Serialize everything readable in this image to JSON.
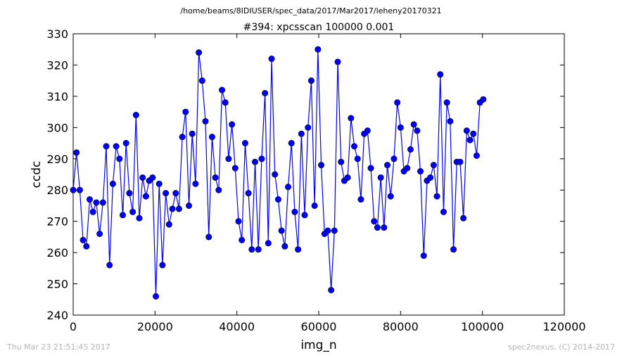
{
  "header": {
    "path": "/home/beams/8IDIUSER/spec_data/2017/Mar2017/leheny20170321",
    "scan_title": "#394: xpcsscan 100000 0.001"
  },
  "footer": {
    "timestamp": "Thu Mar 23 21:51:45 2017",
    "credit": "spec2nexus, (C) 2014-2017"
  },
  "chart_data": {
    "type": "line",
    "title": "#394: xpcsscan 100000 0.001",
    "xlabel": "img_n",
    "ylabel": "ccdc",
    "xlim": [
      0,
      120000
    ],
    "ylim": [
      240,
      330
    ],
    "xticks": [
      0,
      20000,
      40000,
      60000,
      80000,
      100000,
      120000
    ],
    "yticks": [
      240,
      250,
      260,
      270,
      280,
      290,
      300,
      310,
      320,
      330
    ],
    "grid": false,
    "marker": "circle",
    "color": "#0000ff",
    "series": [
      {
        "x": [
          0,
          808,
          1616,
          2424,
          3232,
          4040,
          4848,
          5657,
          6465,
          7273,
          8081,
          8889,
          9697,
          10505,
          11313,
          12121,
          12929,
          13737,
          14545,
          15354,
          16162,
          16970,
          17778,
          18586,
          19394,
          20202,
          21010,
          21818,
          22626,
          23434,
          24242,
          25051,
          25859,
          26667,
          27475,
          28283,
          29091,
          29899,
          30707,
          31515,
          32323,
          33131,
          33939,
          34747,
          35556,
          36364,
          37172,
          37980,
          38788,
          39596,
          40404,
          41212,
          42020,
          42828,
          43636,
          44444,
          45253,
          46061,
          46869,
          47677,
          48485,
          49293,
          50101,
          50909,
          51717,
          52525,
          53333,
          54141,
          54949,
          55758,
          56566,
          57374,
          58182,
          58990,
          59798,
          60606,
          61414,
          62222,
          63030,
          63838,
          64646,
          65455,
          66263,
          67071,
          67879,
          68687,
          69495,
          70303,
          71111,
          71919,
          72727,
          73535,
          74343,
          75152,
          75960,
          76768,
          77576,
          78384,
          79192,
          80000,
          80808,
          81616,
          82424,
          83232,
          84040,
          84848,
          85657,
          86465,
          87273,
          88081,
          88889,
          89697,
          90505,
          91313,
          92121,
          92929,
          93737,
          94545,
          95354,
          96162,
          96970,
          97778,
          98586,
          99394,
          100202
        ],
        "y": [
          280,
          292,
          280,
          264,
          262,
          277,
          273,
          276,
          266,
          276,
          294,
          256,
          282,
          294,
          290,
          272,
          295,
          279,
          273,
          304,
          271,
          284,
          278,
          283,
          284,
          246,
          282,
          256,
          279,
          269,
          274,
          279,
          274,
          297,
          305,
          275,
          298,
          282,
          324,
          315,
          302,
          265,
          297,
          284,
          280,
          312,
          308,
          290,
          301,
          287,
          270,
          264,
          295,
          279,
          261,
          289,
          261,
          290,
          311,
          263,
          322,
          285,
          277,
          267,
          262,
          281,
          295,
          273,
          261,
          298,
          272,
          300,
          315,
          275,
          325,
          288,
          266,
          267,
          248,
          267,
          321,
          289,
          283,
          284,
          303,
          294,
          290,
          277,
          298,
          299,
          287,
          270,
          268,
          284,
          268,
          288,
          278,
          290,
          308,
          300,
          286,
          287,
          293,
          301,
          299,
          286,
          259,
          283,
          284,
          288,
          278,
          317,
          273,
          308,
          302,
          261,
          289,
          289,
          271,
          299,
          296,
          298,
          291,
          308,
          309
        ]
      }
    ]
  }
}
